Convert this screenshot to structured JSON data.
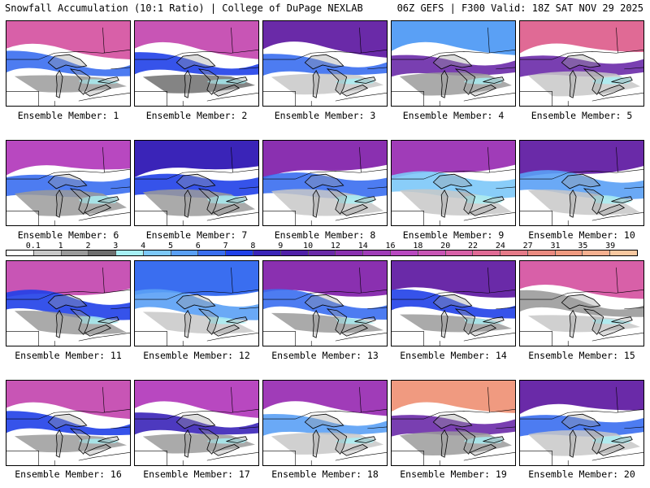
{
  "header": {
    "left": "Snowfall Accumulation (10:1 Ratio) | College of DuPage NEXLAB",
    "right": "06Z GEFS | F300 Valid: 18Z SAT NOV 29 2025"
  },
  "colorbar": {
    "ticks": [
      "0.1",
      "1",
      "2",
      "3",
      "4",
      "5",
      "6",
      "7",
      "8",
      "9",
      "10",
      "12",
      "14",
      "16",
      "18",
      "20",
      "22",
      "24",
      "27",
      "31",
      "35",
      "39"
    ],
    "colors": [
      "#ffffff",
      "#c8c8c8",
      "#9b9b9b",
      "#6e6e6e",
      "#a6f0f5",
      "#7cc8f8",
      "#5aa0f5",
      "#3a6ef0",
      "#2040e8",
      "#3a24b8",
      "#5020a8",
      "#6a2aa8",
      "#8a30b0",
      "#a03cb8",
      "#b848c0",
      "#c855b5",
      "#d860a8",
      "#e06a95",
      "#e57a88",
      "#ea8a80",
      "#f09a80",
      "#f5b090",
      "#f8c8a0"
    ]
  },
  "map_legend": {
    "colors": {
      "snow_light_gray": "#c8c8c8",
      "snow_mid_gray": "#9b9b9b",
      "snow_cyan": "#a6f0f5",
      "snow_blue": "#3a6ef0",
      "snow_purple": "#6a2aa8",
      "snow_magenta": "#d860a8",
      "snow_peach": "#f5b090",
      "borders": "#000000"
    }
  },
  "panels": [
    {
      "label": "Ensemble Member: 1",
      "top": "#d860a8",
      "band": "#3a6ef0",
      "mid": "#9b9b9b"
    },
    {
      "label": "Ensemble Member: 2",
      "top": "#c855b5",
      "band": "#2040e8",
      "mid": "#6e6e6e"
    },
    {
      "label": "Ensemble Member: 3",
      "top": "#6a2aa8",
      "band": "#3a6ef0",
      "mid": "#c8c8c8"
    },
    {
      "label": "Ensemble Member: 4",
      "top": "#5aa0f5",
      "band": "#6a2aa8",
      "mid": "#9b9b9b"
    },
    {
      "label": "Ensemble Member: 5",
      "top": "#e06a95",
      "band": "#6a2aa8",
      "mid": "#c8c8c8"
    },
    {
      "label": "Ensemble Member: 6",
      "top": "#b848c0",
      "band": "#3a6ef0",
      "mid": "#9b9b9b"
    },
    {
      "label": "Ensemble Member: 7",
      "top": "#3a24b8",
      "band": "#2040e8",
      "mid": "#9b9b9b"
    },
    {
      "label": "Ensemble Member: 8",
      "top": "#8a30b0",
      "band": "#3a6ef0",
      "mid": "#c8c8c8"
    },
    {
      "label": "Ensemble Member: 9",
      "top": "#a03cb8",
      "band": "#7cc8f8",
      "mid": "#c8c8c8"
    },
    {
      "label": "Ensemble Member: 10",
      "top": "#6a2aa8",
      "band": "#5aa0f5",
      "mid": "#c8c8c8"
    },
    {
      "label": "Ensemble Member: 11",
      "top": "#c855b5",
      "band": "#2040e8",
      "mid": "#9b9b9b"
    },
    {
      "label": "Ensemble Member: 12",
      "top": "#3a6ef0",
      "band": "#5aa0f5",
      "mid": "#c8c8c8"
    },
    {
      "label": "Ensemble Member: 13",
      "top": "#8a30b0",
      "band": "#3a6ef0",
      "mid": "#9b9b9b"
    },
    {
      "label": "Ensemble Member: 14",
      "top": "#6a2aa8",
      "band": "#2040e8",
      "mid": "#9b9b9b"
    },
    {
      "label": "Ensemble Member: 15",
      "top": "#d860a8",
      "band": "#9b9b9b",
      "mid": "#c8c8c8"
    },
    {
      "label": "Ensemble Member: 16",
      "top": "#c855b5",
      "band": "#2040e8",
      "mid": "#9b9b9b"
    },
    {
      "label": "Ensemble Member: 17",
      "top": "#b848c0",
      "band": "#3a24b8",
      "mid": "#9b9b9b"
    },
    {
      "label": "Ensemble Member: 18",
      "top": "#a03cb8",
      "band": "#5aa0f5",
      "mid": "#c8c8c8"
    },
    {
      "label": "Ensemble Member: 19",
      "top": "#f09a80",
      "band": "#6a2aa8",
      "mid": "#9b9b9b"
    },
    {
      "label": "Ensemble Member: 20",
      "top": "#6a2aa8",
      "band": "#3a6ef0",
      "mid": "#c8c8c8"
    }
  ]
}
